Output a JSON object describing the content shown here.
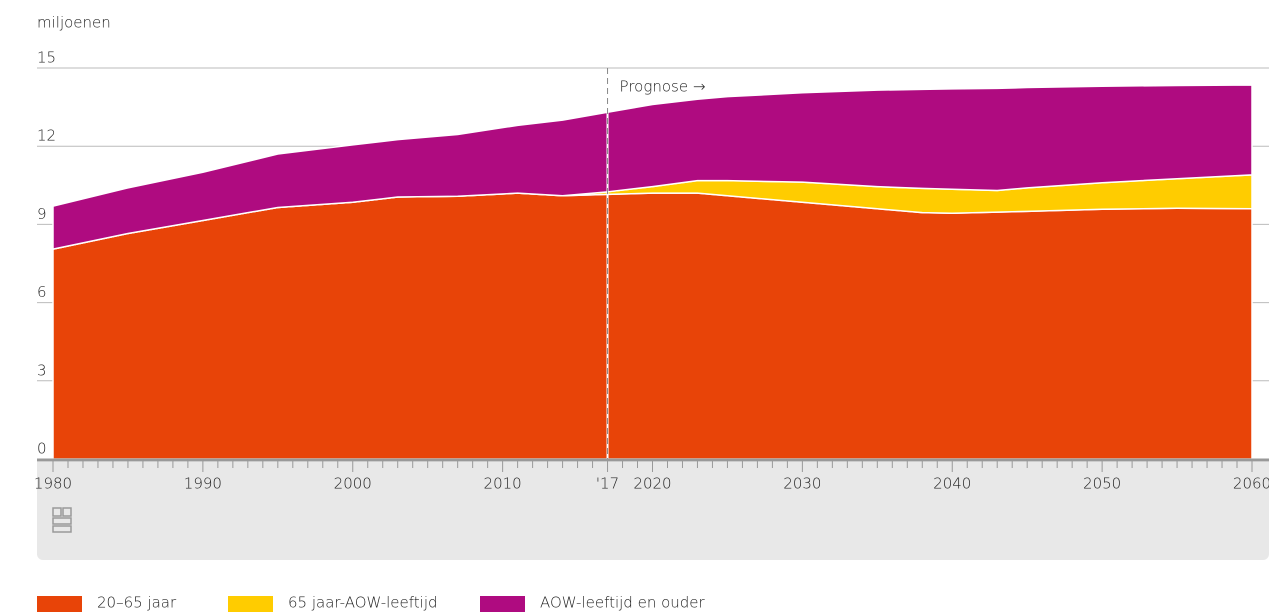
{
  "chart_data": {
    "type": "stacked_area",
    "y_label": "miljoenen",
    "x": [
      1980,
      1985,
      1990,
      1995,
      2000,
      2003,
      2007,
      2011,
      2014,
      2017,
      2020,
      2023,
      2025,
      2030,
      2035,
      2038,
      2040,
      2043,
      2045,
      2050,
      2055,
      2060
    ],
    "series": [
      {
        "name": "20–65 jaar",
        "color": "#e84408",
        "values": [
          8.05,
          8.65,
          9.15,
          9.65,
          9.85,
          10.05,
          10.08,
          10.2,
          10.1,
          10.15,
          10.2,
          10.2,
          10.1,
          9.85,
          9.6,
          9.45,
          9.43,
          9.47,
          9.5,
          9.58,
          9.62,
          9.6
        ]
      },
      {
        "name": "65 jaar-AOW-leeftijd",
        "color": "#ffcc00",
        "values": [
          0,
          0,
          0,
          0,
          0,
          0,
          0,
          0,
          0,
          0.1,
          0.25,
          0.48,
          0.58,
          0.77,
          0.85,
          0.93,
          0.92,
          0.83,
          0.9,
          1.02,
          1.13,
          1.3
        ]
      },
      {
        "name": "AOW-leeftijd en ouder",
        "color": "#af0b80",
        "values": [
          1.65,
          1.75,
          1.85,
          2.05,
          2.2,
          2.2,
          2.37,
          2.6,
          2.9,
          3.05,
          3.15,
          3.12,
          3.22,
          3.43,
          3.7,
          3.8,
          3.85,
          3.92,
          3.85,
          3.7,
          3.58,
          3.45
        ]
      }
    ],
    "xlim": [
      1980,
      2060
    ],
    "xticks": [
      1980,
      1990,
      2000,
      2010,
      {
        "value": 2017,
        "label": "'17"
      },
      2020,
      2030,
      2040,
      2050,
      2060
    ],
    "xminor": [
      1980,
      1981,
      1982,
      1983,
      1984,
      1985,
      1986,
      1987,
      1988,
      1989,
      1990,
      1991,
      1992,
      1993,
      1994,
      1995,
      1996,
      1997,
      1998,
      1999,
      2000,
      2001,
      2002,
      2003,
      2004,
      2005,
      2006,
      2007,
      2008,
      2009,
      2010,
      2011,
      2012,
      2013,
      2014,
      2015,
      2016,
      2017,
      2018,
      2019,
      2020,
      2021,
      2022,
      2023,
      2024,
      2025,
      2026,
      2027,
      2028,
      2029,
      2030,
      2031,
      2032,
      2033,
      2034,
      2035,
      2036,
      2037,
      2038,
      2039,
      2040,
      2041,
      2042,
      2043,
      2044,
      2045,
      2046,
      2047,
      2048,
      2049,
      2050,
      2051,
      2052,
      2053,
      2054,
      2055,
      2056,
      2057,
      2058,
      2059,
      2060
    ],
    "ylim": [
      0,
      15
    ],
    "yticks": [
      0,
      3,
      6,
      9,
      12,
      15
    ],
    "grid": true,
    "annotation": {
      "text": "Prognose →",
      "x": 2017
    }
  }
}
